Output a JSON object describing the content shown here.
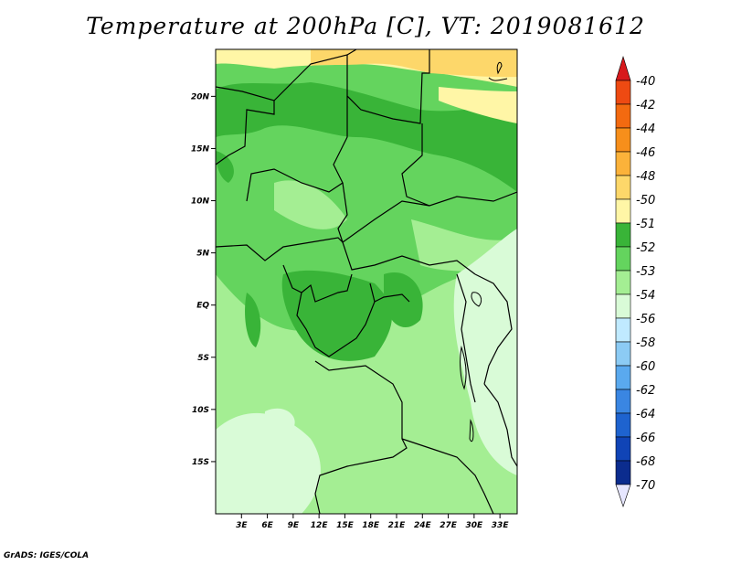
{
  "title": "Temperature at 200hPa [C], VT: 2019081612",
  "footer": "GrADS: IGES/COLA",
  "map": {
    "lat_labels": [
      "20N",
      "15N",
      "10N",
      "5N",
      "EQ",
      "5S",
      "10S",
      "15S"
    ],
    "lon_labels": [
      "3E",
      "6E",
      "9E",
      "12E",
      "15E",
      "18E",
      "21E",
      "24E",
      "27E",
      "30E",
      "33E"
    ],
    "lon_range": [
      0,
      35
    ],
    "lat_range": [
      -20,
      24.5
    ]
  },
  "colorbar": {
    "labels": [
      "-40",
      "-42",
      "-44",
      "-46",
      "-48",
      "-50",
      "-51",
      "-52",
      "-53",
      "-54",
      "-56",
      "-58",
      "-60",
      "-62",
      "-64",
      "-66",
      "-68",
      "-70"
    ],
    "colors": [
      "#d7191c",
      "#ee4a12",
      "#f36a10",
      "#f78f1b",
      "#fbb23a",
      "#fdd76a",
      "#fff6a6",
      "#39b438",
      "#64d45e",
      "#a4ee93",
      "#d9fbd7",
      "#c0eaff",
      "#8ccbf4",
      "#5aa9ee",
      "#3a86e2",
      "#1e63cf",
      "#1044b6",
      "#0b2c8e",
      "#071a66",
      "#e6e6ff"
    ]
  }
}
